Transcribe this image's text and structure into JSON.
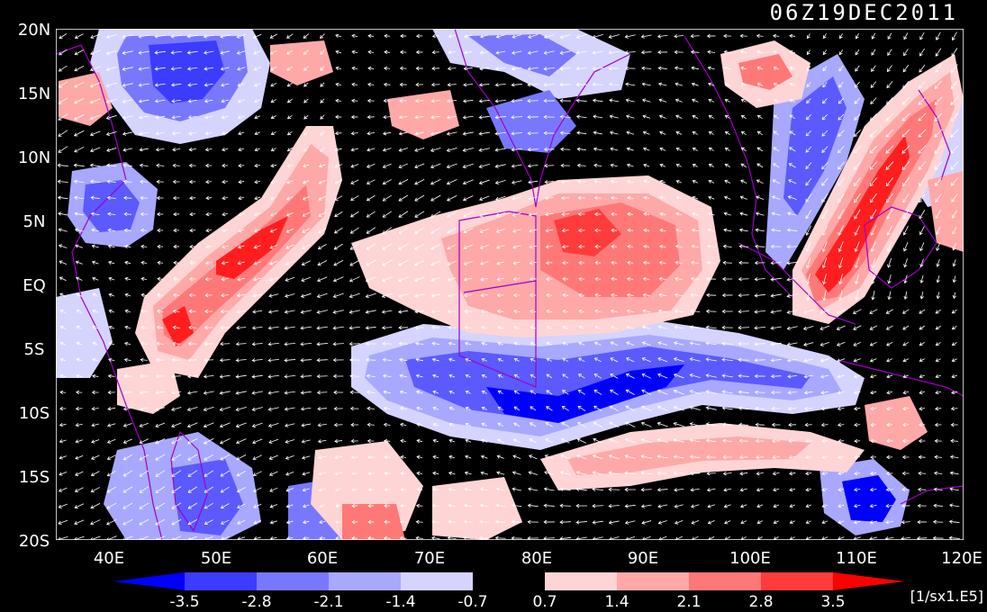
{
  "timestamp": "06Z19DEC2011",
  "lat_labels": [
    "20N",
    "15N",
    "10N",
    "5N",
    "EQ",
    "5S",
    "10S",
    "15S",
    "20S"
  ],
  "lon_labels": [
    "40E",
    "50E",
    "60E",
    "70E",
    "80E",
    "90E",
    "100E",
    "110E",
    "120E"
  ],
  "domain": {
    "lon_range": [
      35,
      120
    ],
    "lat_range": [
      -20,
      20
    ]
  },
  "colorbar": {
    "ticks": [
      "-3.5",
      "-2.8",
      "-2.1",
      "-1.4",
      "-0.7",
      "0.7",
      "1.4",
      "2.1",
      "2.8",
      "3.5"
    ],
    "colors": [
      "#0000ff",
      "#3c3cff",
      "#7878ff",
      "#a8a8ff",
      "#d4d4ff",
      "#000000",
      "#ffd4d4",
      "#ffa8a8",
      "#ff7878",
      "#ff3c3c",
      "#ff0000"
    ],
    "units": "[1/sx1.E5]"
  },
  "colors": {
    "background": "#000000",
    "coast": "#a000c8",
    "vector": "#ffffff"
  }
}
